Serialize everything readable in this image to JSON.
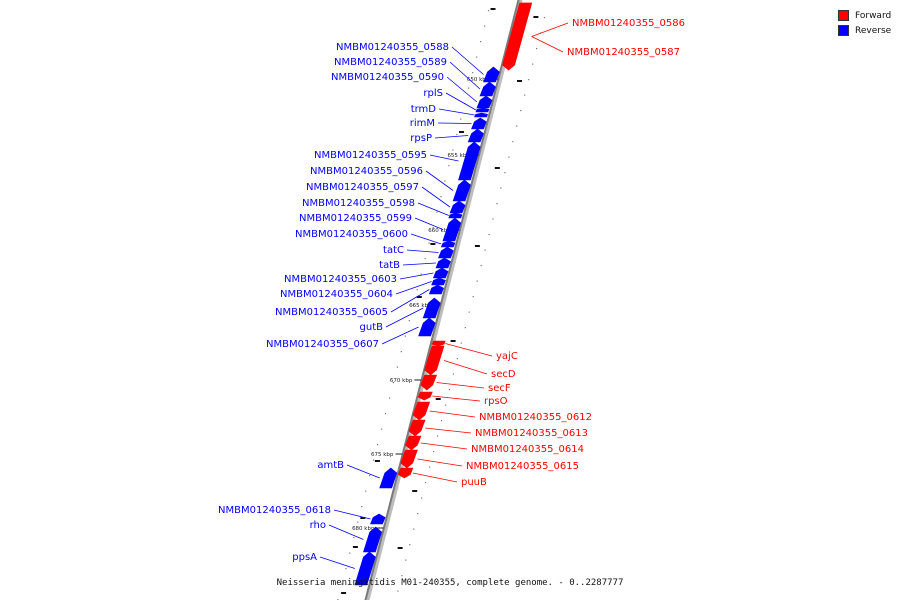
{
  "legend": {
    "forward_label": "Forward",
    "reverse_label": "Reverse",
    "forward_color": "#ff0000",
    "reverse_color": "#0000ff"
  },
  "footer": {
    "caption": "Neisseria meningitidis M01-240355, complete genome. - 0..2287777"
  },
  "ticks": [
    {
      "label": "650 kbp"
    },
    {
      "label": "655 kbp"
    },
    {
      "label": "660 kbp"
    },
    {
      "label": "665 kbp"
    },
    {
      "label": "670 kbp"
    },
    {
      "label": "675 kbp"
    },
    {
      "label": "680 kbp"
    }
  ],
  "genes": [
    {
      "label": "NMBM01240355_0586",
      "strand": "forward"
    },
    {
      "label": "NMBM01240355_0587",
      "strand": "forward"
    },
    {
      "label": "NMBM01240355_0588",
      "strand": "reverse"
    },
    {
      "label": "NMBM01240355_0589",
      "strand": "reverse"
    },
    {
      "label": "NMBM01240355_0590",
      "strand": "reverse"
    },
    {
      "label": "rplS",
      "strand": "reverse"
    },
    {
      "label": "trmD",
      "strand": "reverse"
    },
    {
      "label": "rimM",
      "strand": "reverse"
    },
    {
      "label": "rpsP",
      "strand": "reverse"
    },
    {
      "label": "NMBM01240355_0595",
      "strand": "reverse"
    },
    {
      "label": "NMBM01240355_0596",
      "strand": "reverse"
    },
    {
      "label": "NMBM01240355_0597",
      "strand": "reverse"
    },
    {
      "label": "NMBM01240355_0598",
      "strand": "reverse"
    },
    {
      "label": "NMBM01240355_0599",
      "strand": "reverse"
    },
    {
      "label": "NMBM01240355_0600",
      "strand": "reverse"
    },
    {
      "label": "tatC",
      "strand": "reverse"
    },
    {
      "label": "tatB",
      "strand": "reverse"
    },
    {
      "label": "NMBM01240355_0603",
      "strand": "reverse"
    },
    {
      "label": "NMBM01240355_0604",
      "strand": "reverse"
    },
    {
      "label": "NMBM01240355_0605",
      "strand": "reverse"
    },
    {
      "label": "gutB",
      "strand": "reverse"
    },
    {
      "label": "NMBM01240355_0607",
      "strand": "reverse"
    },
    {
      "label": "yajC",
      "strand": "forward"
    },
    {
      "label": "secD",
      "strand": "forward"
    },
    {
      "label": "secF",
      "strand": "forward"
    },
    {
      "label": "rpsO",
      "strand": "forward"
    },
    {
      "label": "NMBM01240355_0612",
      "strand": "forward"
    },
    {
      "label": "NMBM01240355_0613",
      "strand": "forward"
    },
    {
      "label": "NMBM01240355_0614",
      "strand": "forward"
    },
    {
      "label": "NMBM01240355_0615",
      "strand": "forward"
    },
    {
      "label": "puuB",
      "strand": "forward"
    },
    {
      "label": "amtB",
      "strand": "reverse"
    },
    {
      "label": "NMBM01240355_0618",
      "strand": "reverse"
    },
    {
      "label": "rho",
      "strand": "reverse"
    },
    {
      "label": "ppsA",
      "strand": "reverse"
    }
  ]
}
